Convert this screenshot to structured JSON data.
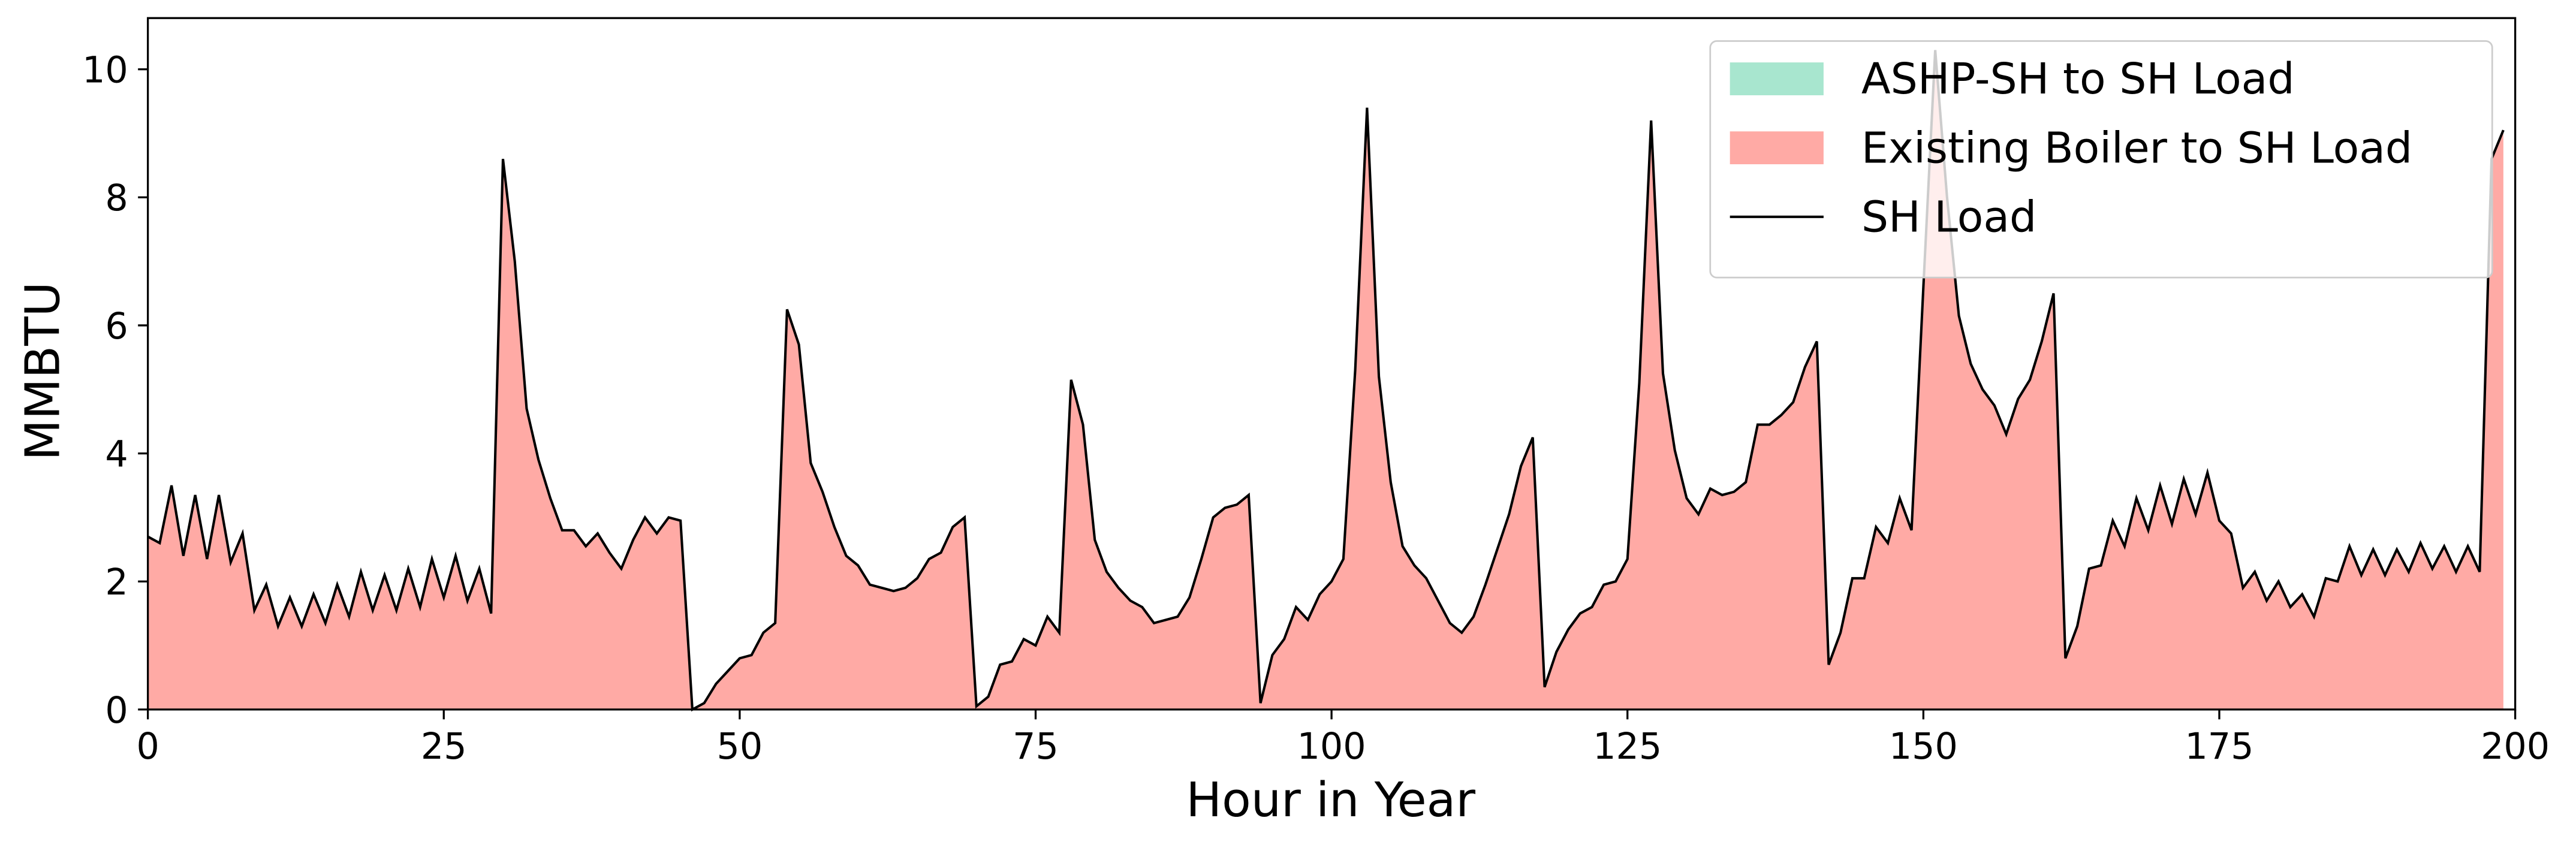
{
  "chart_data": {
    "type": "stacked_area",
    "xlabel": "Hour in Year",
    "ylabel": "MMBTU",
    "x": [
      0,
      1,
      2,
      3,
      4,
      5,
      6,
      7,
      8,
      9,
      10,
      11,
      12,
      13,
      14,
      15,
      16,
      17,
      18,
      19,
      20,
      21,
      22,
      23,
      24,
      25,
      26,
      27,
      28,
      29,
      30,
      31,
      32,
      33,
      34,
      35,
      36,
      37,
      38,
      39,
      40,
      41,
      42,
      43,
      44,
      45,
      46,
      47,
      48,
      49,
      50,
      51,
      52,
      53,
      54,
      55,
      56,
      57,
      58,
      59,
      60,
      61,
      62,
      63,
      64,
      65,
      66,
      67,
      68,
      69,
      70,
      71,
      72,
      73,
      74,
      75,
      76,
      77,
      78,
      79,
      80,
      81,
      82,
      83,
      84,
      85,
      86,
      87,
      88,
      89,
      90,
      91,
      92,
      93,
      94,
      95,
      96,
      97,
      98,
      99,
      100,
      101,
      102,
      103,
      104,
      105,
      106,
      107,
      108,
      109,
      110,
      111,
      112,
      113,
      114,
      115,
      116,
      117,
      118,
      119,
      120,
      121,
      122,
      123,
      124,
      125,
      126,
      127,
      128,
      129,
      130,
      131,
      132,
      133,
      134,
      135,
      136,
      137,
      138,
      139,
      140,
      141,
      142,
      143,
      144,
      145,
      146,
      147,
      148,
      149,
      150,
      151,
      152,
      153,
      154,
      155,
      156,
      157,
      158,
      159,
      160,
      161,
      162,
      163,
      164,
      165,
      166,
      167,
      168,
      169,
      170,
      171,
      172,
      173,
      174,
      175,
      176,
      177,
      178,
      179,
      180,
      181,
      182,
      183,
      184,
      185,
      186,
      187,
      188,
      189,
      190,
      191,
      192,
      193,
      194,
      195,
      196,
      197,
      198,
      199
    ],
    "series": [
      {
        "name": "ASHP-SH to SH Load",
        "color": "#a8e6cf",
        "kind": "area",
        "values": [
          0,
          0,
          0,
          0,
          0,
          0,
          0,
          0,
          0,
          0,
          0,
          0,
          0,
          0,
          0,
          0,
          0,
          0,
          0,
          0,
          0,
          0,
          0,
          0,
          0,
          0,
          0,
          0,
          0,
          0,
          0,
          0,
          0,
          0,
          0,
          0,
          0,
          0,
          0,
          0,
          0,
          0,
          0,
          0,
          0,
          0,
          0,
          0,
          0,
          0,
          0,
          0,
          0,
          0,
          0,
          0,
          0,
          0,
          0,
          0,
          0,
          0,
          0,
          0,
          0,
          0,
          0,
          0,
          0,
          0,
          0,
          0,
          0,
          0,
          0,
          0,
          0,
          0,
          0,
          0,
          0,
          0,
          0,
          0,
          0,
          0,
          0,
          0,
          0,
          0,
          0,
          0,
          0,
          0,
          0,
          0,
          0,
          0,
          0,
          0,
          0,
          0,
          0,
          0,
          0,
          0,
          0,
          0,
          0,
          0,
          0,
          0,
          0,
          0,
          0,
          0,
          0,
          0,
          0,
          0,
          0,
          0,
          0,
          0,
          0,
          0,
          0,
          0,
          0,
          0,
          0,
          0,
          0,
          0,
          0,
          0,
          0,
          0,
          0,
          0,
          0,
          0,
          0,
          0,
          0,
          0,
          0,
          0,
          0,
          0,
          0,
          0,
          0,
          0,
          0,
          0,
          0,
          0,
          0,
          0,
          0,
          0,
          0,
          0,
          0,
          0,
          0,
          0,
          0,
          0,
          0,
          0,
          0,
          0,
          0,
          0,
          0,
          0,
          0,
          0,
          0,
          0,
          0,
          0,
          0,
          0,
          0,
          0,
          0,
          0,
          0,
          0,
          0,
          0,
          0,
          0,
          0,
          0,
          0,
          0
        ]
      },
      {
        "name": "Existing Boiler to SH Load",
        "color": "#ffaaa5",
        "kind": "area",
        "values": [
          2.7,
          2.6,
          3.5,
          2.4,
          3.35,
          2.35,
          3.35,
          2.3,
          2.75,
          1.55,
          1.95,
          1.3,
          1.75,
          1.3,
          1.8,
          1.35,
          1.95,
          1.45,
          2.15,
          1.55,
          2.1,
          1.55,
          2.2,
          1.6,
          2.35,
          1.75,
          2.4,
          1.7,
          2.2,
          1.5,
          8.6,
          7.0,
          4.7,
          3.9,
          3.3,
          2.8,
          2.8,
          2.55,
          2.75,
          2.45,
          2.2,
          2.65,
          3.0,
          2.75,
          3.0,
          2.95,
          0.0,
          0.1,
          0.4,
          0.6,
          0.8,
          0.85,
          1.2,
          1.35,
          6.25,
          5.7,
          3.85,
          3.4,
          2.85,
          2.4,
          2.25,
          1.95,
          1.9,
          1.85,
          1.9,
          2.05,
          2.35,
          2.45,
          2.85,
          3.0,
          0.05,
          0.2,
          0.7,
          0.75,
          1.1,
          1.0,
          1.45,
          1.2,
          5.15,
          4.45,
          2.65,
          2.15,
          1.9,
          1.7,
          1.6,
          1.35,
          1.4,
          1.45,
          1.75,
          2.35,
          3.0,
          3.15,
          3.2,
          3.35,
          0.1,
          0.85,
          1.1,
          1.6,
          1.4,
          1.8,
          2.0,
          2.35,
          5.3,
          9.4,
          5.2,
          3.55,
          2.55,
          2.25,
          2.05,
          1.7,
          1.35,
          1.2,
          1.45,
          1.95,
          2.5,
          3.05,
          3.8,
          4.25,
          0.35,
          0.9,
          1.25,
          1.5,
          1.6,
          1.95,
          2.0,
          2.35,
          5.1,
          9.2,
          5.25,
          4.05,
          3.3,
          3.05,
          3.45,
          3.35,
          3.4,
          3.55,
          4.45,
          4.45,
          4.6,
          4.8,
          5.35,
          5.75,
          0.7,
          1.2,
          2.05,
          2.05,
          2.85,
          2.6,
          3.3,
          2.8,
          6.6,
          10.3,
          8.0,
          6.15,
          5.4,
          5.0,
          4.75,
          4.3,
          4.85,
          5.15,
          5.75,
          6.5,
          0.8,
          1.3,
          2.2,
          2.25,
          2.95,
          2.55,
          3.3,
          2.8,
          3.5,
          2.9,
          3.6,
          3.05,
          3.7,
          2.95,
          2.75,
          1.9,
          2.15,
          1.7,
          2.0,
          1.6,
          1.8,
          1.45,
          2.05,
          2.0,
          2.55,
          2.1,
          2.5,
          2.1,
          2.5,
          2.15,
          2.6,
          2.2,
          2.55,
          2.15,
          2.55,
          2.15,
          8.6,
          9.05
        ]
      },
      {
        "name": "SH Load",
        "color": "#000000",
        "kind": "line",
        "values": [
          2.7,
          2.6,
          3.5,
          2.4,
          3.35,
          2.35,
          3.35,
          2.3,
          2.75,
          1.55,
          1.95,
          1.3,
          1.75,
          1.3,
          1.8,
          1.35,
          1.95,
          1.45,
          2.15,
          1.55,
          2.1,
          1.55,
          2.2,
          1.6,
          2.35,
          1.75,
          2.4,
          1.7,
          2.2,
          1.5,
          8.6,
          7.0,
          4.7,
          3.9,
          3.3,
          2.8,
          2.8,
          2.55,
          2.75,
          2.45,
          2.2,
          2.65,
          3.0,
          2.75,
          3.0,
          2.95,
          0.0,
          0.1,
          0.4,
          0.6,
          0.8,
          0.85,
          1.2,
          1.35,
          6.25,
          5.7,
          3.85,
          3.4,
          2.85,
          2.4,
          2.25,
          1.95,
          1.9,
          1.85,
          1.9,
          2.05,
          2.35,
          2.45,
          2.85,
          3.0,
          0.05,
          0.2,
          0.7,
          0.75,
          1.1,
          1.0,
          1.45,
          1.2,
          5.15,
          4.45,
          2.65,
          2.15,
          1.9,
          1.7,
          1.6,
          1.35,
          1.4,
          1.45,
          1.75,
          2.35,
          3.0,
          3.15,
          3.2,
          3.35,
          0.1,
          0.85,
          1.1,
          1.6,
          1.4,
          1.8,
          2.0,
          2.35,
          5.3,
          9.4,
          5.2,
          3.55,
          2.55,
          2.25,
          2.05,
          1.7,
          1.35,
          1.2,
          1.45,
          1.95,
          2.5,
          3.05,
          3.8,
          4.25,
          0.35,
          0.9,
          1.25,
          1.5,
          1.6,
          1.95,
          2.0,
          2.35,
          5.1,
          9.2,
          5.25,
          4.05,
          3.3,
          3.05,
          3.45,
          3.35,
          3.4,
          3.55,
          4.45,
          4.45,
          4.6,
          4.8,
          5.35,
          5.75,
          0.7,
          1.2,
          2.05,
          2.05,
          2.85,
          2.6,
          3.3,
          2.8,
          6.6,
          10.3,
          8.0,
          6.15,
          5.4,
          5.0,
          4.75,
          4.3,
          4.85,
          5.15,
          5.75,
          6.5,
          0.8,
          1.3,
          2.2,
          2.25,
          2.95,
          2.55,
          3.3,
          2.8,
          3.5,
          2.9,
          3.6,
          3.05,
          3.7,
          2.95,
          2.75,
          1.9,
          2.15,
          1.7,
          2.0,
          1.6,
          1.8,
          1.45,
          2.05,
          2.0,
          2.55,
          2.1,
          2.5,
          2.1,
          2.5,
          2.15,
          2.6,
          2.2,
          2.55,
          2.15,
          2.55,
          2.15,
          8.6,
          9.05
        ]
      }
    ],
    "xlim": [
      0,
      200
    ],
    "xticks": [
      0,
      25,
      50,
      75,
      100,
      125,
      150,
      175,
      200
    ],
    "ylim": [
      0,
      10.8
    ],
    "yticks": [
      0,
      2,
      4,
      6,
      8,
      10
    ],
    "legend": "upper right"
  }
}
